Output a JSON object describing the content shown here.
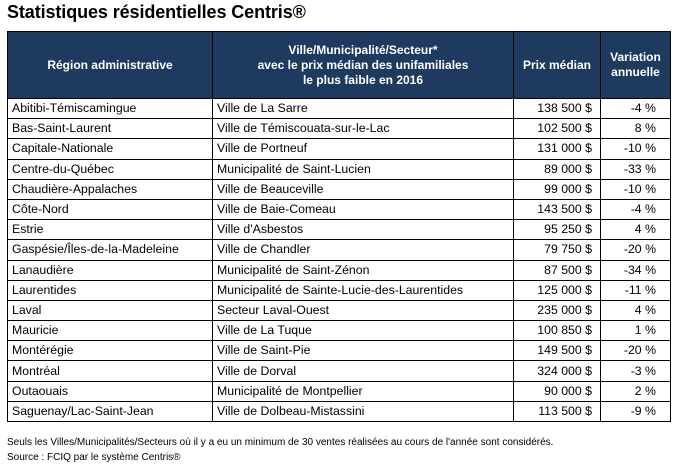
{
  "title": "Statistiques résidentielles Centris®",
  "table": {
    "headers": {
      "region": "Région administrative",
      "ville_line1": "Ville/Municipalité/Secteur*",
      "ville_line2": "avec le prix médian des unifamiliales",
      "ville_line3": "le plus faible en 2016",
      "prix": "Prix médian",
      "variation_line1": "Variation",
      "variation_line2": "annuelle"
    },
    "rows": [
      {
        "region": "Abitibi-Témiscamingue",
        "ville": "Ville de La Sarre",
        "prix": "138 500 $",
        "variation": "-4 %"
      },
      {
        "region": "Bas-Saint-Laurent",
        "ville": "Ville de Témiscouata-sur-le-Lac",
        "prix": "102 500 $",
        "variation": "8 %"
      },
      {
        "region": "Capitale-Nationale",
        "ville": "Ville de Portneuf",
        "prix": "131 000 $",
        "variation": "-10 %"
      },
      {
        "region": "Centre-du-Québec",
        "ville": "Municipalité de Saint-Lucien",
        "prix": "89 000 $",
        "variation": "-33 %"
      },
      {
        "region": "Chaudière-Appalaches",
        "ville": "Ville de Beauceville",
        "prix": "99 000 $",
        "variation": "-10 %"
      },
      {
        "region": "Côte-Nord",
        "ville": "Ville de Baie-Comeau",
        "prix": "143 500 $",
        "variation": "-4 %"
      },
      {
        "region": "Estrie",
        "ville": "Ville d'Asbestos",
        "prix": "95 250 $",
        "variation": "4 %"
      },
      {
        "region": "Gaspésie/Îles-de-la-Madeleine",
        "ville": "Ville de Chandler",
        "prix": "79 750 $",
        "variation": "-20 %"
      },
      {
        "region": "Lanaudière",
        "ville": "Municipalité de Saint-Zénon",
        "prix": "87 500 $",
        "variation": "-34 %"
      },
      {
        "region": "Laurentides",
        "ville": "Municipalité de Sainte-Lucie-des-Laurentides",
        "prix": "125 000 $",
        "variation": "-11 %"
      },
      {
        "region": "Laval",
        "ville": "Secteur Laval-Ouest",
        "prix": "235 000 $",
        "variation": "4 %"
      },
      {
        "region": "Mauricie",
        "ville": "Ville de La Tuque",
        "prix": "100 850 $",
        "variation": "1 %"
      },
      {
        "region": "Montérégie",
        "ville": "Ville de Saint-Pie",
        "prix": "149 500 $",
        "variation": "-20 %"
      },
      {
        "region": "Montréal",
        "ville": "Ville de Dorval",
        "prix": "324 000 $",
        "variation": "-3 %"
      },
      {
        "region": "Outaouais",
        "ville": "Municipalité de Montpellier",
        "prix": "90 000 $",
        "variation": "2 %"
      },
      {
        "region": "Saguenay/Lac-Saint-Jean",
        "ville": "Ville de Dolbeau-Mistassini",
        "prix": "113 500 $",
        "variation": "-9 %"
      }
    ]
  },
  "footnotes": {
    "note": "Seuls les Villes/Municipalités/Secteurs où il y a eu un minimum de 30 ventes réalisées au cours de l'année sont considérés.",
    "source": "Source : FCIQ par le système Centris®"
  },
  "colors": {
    "header_background": "#1f3a5f",
    "header_text": "#ffffff"
  }
}
